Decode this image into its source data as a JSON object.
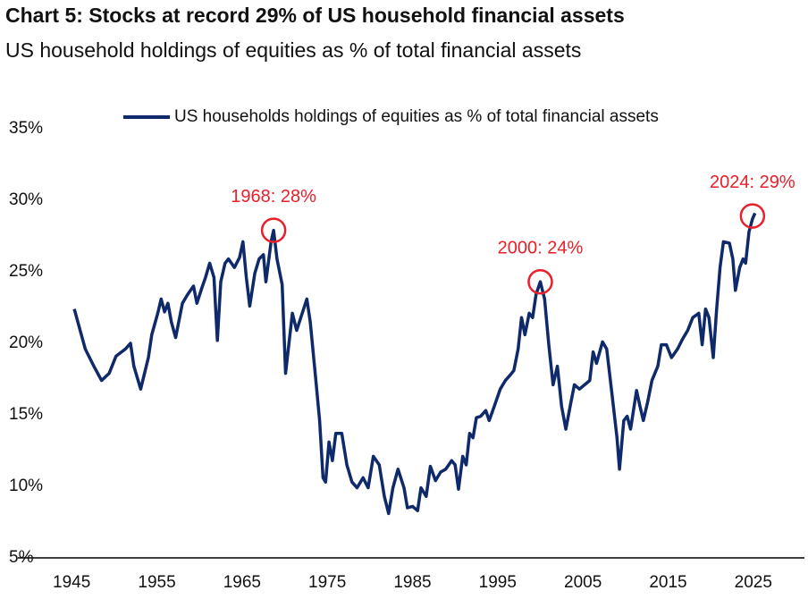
{
  "chart_data": {
    "type": "line",
    "title": "Chart 5: Stocks at record 29% of US household financial assets",
    "subtitle": "US household holdings of equities as % of total financial assets",
    "x": [
      1945.3,
      1946.6,
      1947.6,
      1948.5,
      1949.4,
      1950.2,
      1951.3,
      1951.9,
      1952.3,
      1953.1,
      1954.0,
      1954.4,
      1955.1,
      1955.5,
      1955.9,
      1956.3,
      1956.7,
      1957.2,
      1958.0,
      1958.6,
      1959.3,
      1959.7,
      1960.3,
      1960.7,
      1961.2,
      1961.7,
      1962.1,
      1962.5,
      1963.0,
      1963.4,
      1964.1,
      1964.7,
      1965.1,
      1965.5,
      1965.9,
      1966.5,
      1967.0,
      1967.5,
      1967.8,
      1968.4,
      1968.7,
      1969.1,
      1969.7,
      1970.1,
      1970.9,
      1971.4,
      1972.0,
      1972.6,
      1973.0,
      1973.6,
      1974.1,
      1974.5,
      1974.8,
      1975.2,
      1975.6,
      1976.0,
      1976.7,
      1977.3,
      1977.9,
      1978.5,
      1979.2,
      1979.8,
      1980.4,
      1981.1,
      1981.7,
      1982.2,
      1982.7,
      1983.3,
      1984.0,
      1984.4,
      1985.0,
      1985.6,
      1986.0,
      1986.6,
      1987.1,
      1987.7,
      1988.3,
      1988.9,
      1989.6,
      1990.0,
      1990.4,
      1990.9,
      1991.3,
      1991.7,
      1992.1,
      1992.5,
      1993.0,
      1993.6,
      1994.0,
      1994.6,
      1995.3,
      1995.9,
      1996.5,
      1996.9,
      1997.4,
      1997.8,
      1998.2,
      1998.7,
      1999.1,
      1999.5,
      2000.0,
      2000.5,
      2001.0,
      2001.5,
      2002.0,
      2002.5,
      2003.0,
      2003.5,
      2004.0,
      2004.6,
      2005.2,
      2005.8,
      2006.2,
      2006.6,
      2007.3,
      2007.8,
      2008.4,
      2009.0,
      2009.3,
      2009.8,
      2010.2,
      2010.6,
      2011.3,
      2011.7,
      2012.1,
      2012.6,
      2013.1,
      2013.8,
      2014.2,
      2014.8,
      2015.4,
      2016.1,
      2016.7,
      2017.3,
      2017.9,
      2018.6,
      2019.0,
      2019.4,
      2019.8,
      2020.3,
      2020.7,
      2021.1,
      2021.5,
      2022.2,
      2022.6,
      2022.9,
      2023.4,
      2023.8,
      2024.1,
      2024.5,
      2024.9,
      2025.2
    ],
    "series": [
      {
        "name": "US households holdings of equities as % of total financial assets",
        "color": "#0f2a6b",
        "values": [
          22.4,
          19.6,
          18.4,
          17.4,
          17.9,
          19.1,
          19.6,
          20.0,
          18.4,
          16.8,
          19.0,
          20.6,
          22.1,
          23.1,
          22.2,
          22.8,
          21.5,
          20.4,
          22.8,
          23.4,
          24.0,
          22.8,
          23.9,
          24.6,
          25.6,
          24.6,
          20.2,
          24.3,
          25.6,
          25.9,
          25.3,
          26.0,
          27.1,
          24.6,
          22.6,
          24.9,
          25.9,
          26.2,
          24.3,
          27.1,
          27.9,
          25.9,
          24.1,
          17.9,
          22.1,
          20.9,
          22.0,
          23.1,
          21.5,
          17.8,
          14.6,
          10.6,
          10.3,
          13.1,
          11.8,
          13.7,
          13.7,
          11.5,
          10.3,
          9.9,
          10.6,
          9.9,
          12.1,
          11.5,
          9.3,
          8.1,
          9.9,
          11.2,
          9.9,
          8.5,
          8.6,
          8.3,
          9.9,
          9.3,
          11.4,
          10.4,
          11.0,
          11.2,
          11.8,
          11.5,
          9.8,
          12.1,
          11.5,
          13.7,
          13.4,
          14.8,
          14.9,
          15.3,
          14.6,
          15.6,
          16.8,
          17.4,
          17.8,
          18.1,
          19.6,
          21.8,
          20.6,
          22.1,
          21.8,
          23.4,
          24.3,
          23.1,
          19.9,
          17.1,
          18.4,
          15.6,
          14.0,
          15.6,
          17.1,
          16.8,
          17.1,
          17.4,
          19.4,
          18.6,
          20.1,
          19.6,
          16.5,
          13.4,
          11.2,
          14.6,
          14.9,
          14.0,
          16.7,
          15.6,
          14.6,
          15.9,
          17.4,
          18.4,
          19.9,
          19.9,
          19.0,
          19.6,
          20.3,
          20.9,
          21.8,
          22.1,
          19.9,
          22.4,
          21.8,
          19.0,
          22.4,
          25.3,
          27.1,
          27.0,
          25.9,
          23.7,
          25.3,
          25.9,
          25.6,
          27.8,
          28.7,
          29.1
        ]
      }
    ],
    "annotations": [
      {
        "text": "1968: 28%",
        "x": 1968.7,
        "y": 27.9,
        "color": "#e8202a"
      },
      {
        "text": "2000: 24%",
        "x": 2000.0,
        "y": 24.3,
        "color": "#e8202a"
      },
      {
        "text": "2024: 29%",
        "x": 2024.9,
        "y": 28.9,
        "color": "#e8202a"
      }
    ],
    "xlim": [
      1939,
      2031
    ],
    "xticks": [
      1945,
      1955,
      1965,
      1975,
      1985,
      1995,
      2005,
      2015,
      2025
    ],
    "ylim": [
      5,
      35
    ],
    "yticks": [
      {
        "value": 5,
        "label": "5%"
      },
      {
        "value": 10,
        "label": "10%"
      },
      {
        "value": 15,
        "label": "15%"
      },
      {
        "value": 20,
        "label": "20%"
      },
      {
        "value": 25,
        "label": "25%"
      },
      {
        "value": 30,
        "label": "30%"
      },
      {
        "value": 35,
        "label": "35%"
      }
    ],
    "grid": false
  }
}
